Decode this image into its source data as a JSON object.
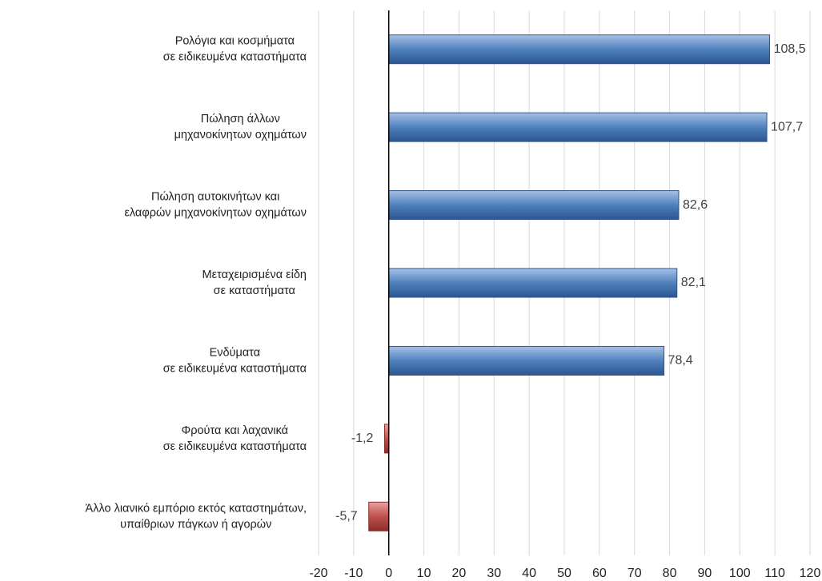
{
  "chart_data": {
    "type": "hbar",
    "categories": [
      [
        "Ρολόγια και κοσμήματα",
        "σε ειδικευμένα καταστήματα"
      ],
      [
        "Πώληση άλλων",
        "μηχανοκίνητων οχημάτων"
      ],
      [
        "Πώληση αυτοκινήτων και",
        "ελαφρών μηχανοκίνητων οχημάτων"
      ],
      [
        "Μεταχειρισμένα είδη",
        "σε καταστήματα"
      ],
      [
        "Ενδύματα",
        "σε ειδικευμένα καταστήματα"
      ],
      [
        "Φρούτα και λαχανικά",
        "σε ειδικευμένα καταστήματα"
      ],
      [
        "Άλλο λιανικό εμπόριο εκτός καταστημάτων,",
        "υπαίθριων πάγκων ή αγορών"
      ]
    ],
    "values": [
      108.5,
      107.7,
      82.6,
      82.1,
      78.4,
      -1.2,
      -5.7
    ],
    "value_labels": [
      "108,5",
      "107,7",
      "82,6",
      "82,1",
      "78,4",
      "-1,2",
      "-5,7"
    ],
    "color": "#4f81bd",
    "negative_color": "#c0504d",
    "xlim": [
      -20,
      120
    ],
    "xticks": [
      -20,
      -10,
      0,
      10,
      20,
      30,
      40,
      50,
      60,
      70,
      80,
      90,
      100,
      110,
      120
    ],
    "grid": true
  }
}
